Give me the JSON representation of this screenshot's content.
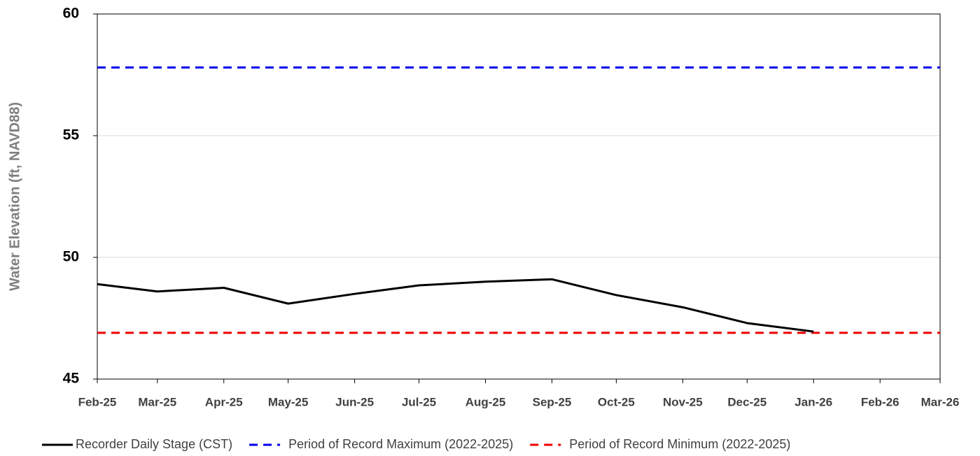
{
  "chart_data": {
    "type": "line",
    "y_label": "Water Elevation (ft, NAVD88)",
    "x": [
      "2025-02",
      "2025-03",
      "2025-04",
      "2025-05",
      "2025-06",
      "2025-07",
      "2025-08",
      "2025-09",
      "2025-10",
      "2025-11",
      "2025-12",
      "2026-01",
      "2026-02",
      "2026-03"
    ],
    "series": [
      {
        "name": "Recorder Daily Stage (CST)",
        "color": "#000000",
        "values": [
          48.9,
          48.6,
          48.75,
          48.1,
          48.5,
          48.85,
          49.0,
          49.1,
          48.45,
          47.95,
          47.3,
          46.95,
          null,
          null
        ]
      }
    ],
    "reference_lines": [
      {
        "name": "Period of Record Maximum (2022-2025)",
        "color": "#0000ee",
        "value": 57.8,
        "dash": true
      },
      {
        "name": "Period of Record Minimum (2022-2025)",
        "color": "#ee0000",
        "value": 46.9,
        "dash": true
      }
    ],
    "xlim": [
      "2025-02",
      "2026-03"
    ],
    "xticks": [
      {
        "value": "2025-02",
        "label": "Feb-25"
      },
      {
        "value": "2025-03",
        "label": "Mar-25"
      },
      {
        "value": "2025-04",
        "label": "Apr-25"
      },
      {
        "value": "2025-05",
        "label": "May-25"
      },
      {
        "value": "2025-06",
        "label": "Jun-25"
      },
      {
        "value": "2025-07",
        "label": "Jul-25"
      },
      {
        "value": "2025-08",
        "label": "Aug-25"
      },
      {
        "value": "2025-09",
        "label": "Sep-25"
      },
      {
        "value": "2025-10",
        "label": "Oct-25"
      },
      {
        "value": "2025-11",
        "label": "Nov-25"
      },
      {
        "value": "2025-12",
        "label": "Dec-25"
      },
      {
        "value": "2026-01",
        "label": "Jan-26"
      },
      {
        "value": "2026-02",
        "label": "Feb-26"
      },
      {
        "value": "2026-03",
        "label": "Mar-26"
      }
    ],
    "ylim": [
      45,
      60
    ],
    "yticks": [
      45,
      50,
      55,
      60
    ],
    "grid": true,
    "legend": "bottom"
  }
}
